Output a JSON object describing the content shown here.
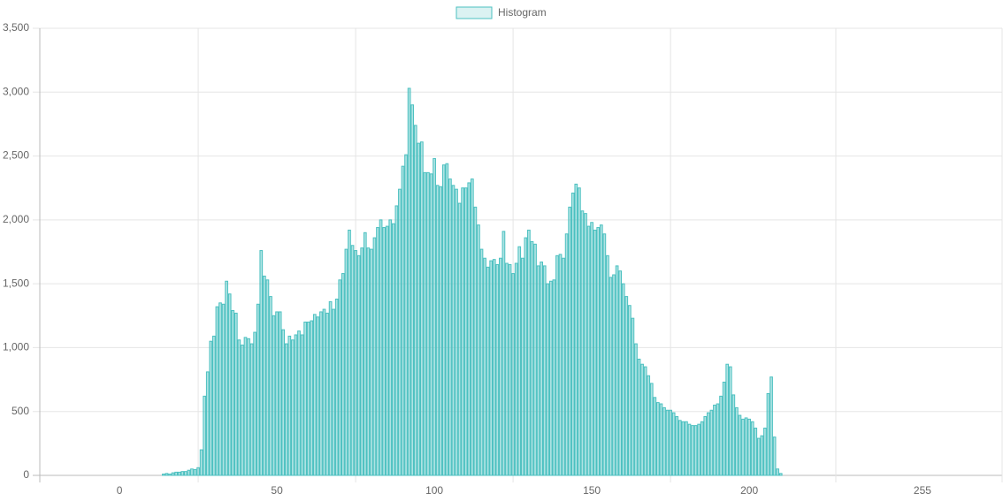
{
  "chart_data": {
    "type": "histogram",
    "x": [
      0,
      1,
      2,
      3,
      4,
      5,
      6,
      7,
      8,
      9,
      10,
      11,
      12,
      13,
      14,
      15,
      16,
      17,
      18,
      19,
      20,
      21,
      22,
      23,
      24,
      25,
      26,
      27,
      28,
      29,
      30,
      31,
      32,
      33,
      34,
      35,
      36,
      37,
      38,
      39,
      40,
      41,
      42,
      43,
      44,
      45,
      46,
      47,
      48,
      49,
      50,
      51,
      52,
      53,
      54,
      55,
      56,
      57,
      58,
      59,
      60,
      61,
      62,
      63,
      64,
      65,
      66,
      67,
      68,
      69,
      70,
      71,
      72,
      73,
      74,
      75,
      76,
      77,
      78,
      79,
      80,
      81,
      82,
      83,
      84,
      85,
      86,
      87,
      88,
      89,
      90,
      91,
      92,
      93,
      94,
      95,
      96,
      97,
      98,
      99,
      100,
      101,
      102,
      103,
      104,
      105,
      106,
      107,
      108,
      109,
      110,
      111,
      112,
      113,
      114,
      115,
      116,
      117,
      118,
      119,
      120,
      121,
      122,
      123,
      124,
      125,
      126,
      127,
      128,
      129,
      130,
      131,
      132,
      133,
      134,
      135,
      136,
      137,
      138,
      139,
      140,
      141,
      142,
      143,
      144,
      145,
      146,
      147,
      148,
      149,
      150,
      151,
      152,
      153,
      154,
      155,
      156,
      157,
      158,
      159,
      160,
      161,
      162,
      163,
      164,
      165,
      166,
      167,
      168,
      169,
      170,
      171,
      172,
      173,
      174,
      175,
      176,
      177,
      178,
      179,
      180,
      181,
      182,
      183,
      184,
      185,
      186,
      187,
      188,
      189,
      190,
      191,
      192,
      193,
      194,
      195,
      196,
      197,
      198,
      199,
      200,
      201,
      202,
      203,
      204,
      205,
      206,
      207,
      208,
      209,
      210,
      211,
      212,
      213,
      214,
      215,
      216,
      217,
      218,
      219,
      220,
      221,
      222,
      223,
      224,
      225,
      226,
      227,
      228,
      229,
      230,
      231,
      232,
      233,
      234,
      235,
      236,
      237,
      238,
      239,
      240,
      241,
      242,
      243,
      244,
      245,
      246,
      247,
      248,
      249,
      250,
      251,
      252,
      253,
      254,
      255
    ],
    "series": [
      {
        "name": "Histogram",
        "color": "#4bc0c0",
        "values": [
          0,
          0,
          0,
          0,
          0,
          0,
          0,
          0,
          0,
          0,
          0,
          0,
          0,
          0,
          10,
          15,
          10,
          20,
          25,
          25,
          30,
          30,
          40,
          50,
          45,
          60,
          200,
          620,
          810,
          1050,
          1090,
          1320,
          1350,
          1340,
          1520,
          1420,
          1290,
          1270,
          1060,
          1020,
          1080,
          1070,
          1030,
          1120,
          1340,
          1760,
          1560,
          1530,
          1400,
          1250,
          1280,
          1280,
          1140,
          1030,
          1090,
          1060,
          1100,
          1130,
          1100,
          1200,
          1200,
          1210,
          1260,
          1240,
          1280,
          1300,
          1270,
          1360,
          1300,
          1380,
          1530,
          1580,
          1770,
          1920,
          1800,
          1760,
          1720,
          1780,
          1900,
          1780,
          1770,
          1860,
          1940,
          2000,
          1940,
          1950,
          2000,
          1970,
          2110,
          2240,
          2420,
          2510,
          3030,
          2900,
          2740,
          2600,
          2610,
          2370,
          2370,
          2360,
          2480,
          2270,
          2260,
          2430,
          2440,
          2320,
          2270,
          2240,
          2130,
          2250,
          2250,
          2290,
          2320,
          2100,
          1960,
          1770,
          1700,
          1630,
          1680,
          1690,
          1650,
          1700,
          1910,
          1660,
          1650,
          1580,
          1660,
          1790,
          1700,
          1860,
          1920,
          1830,
          1810,
          1640,
          1670,
          1640,
          1500,
          1520,
          1530,
          1720,
          1730,
          1700,
          1890,
          2100,
          2210,
          2280,
          2250,
          2070,
          2050,
          1950,
          1980,
          1920,
          1940,
          1960,
          1890,
          1720,
          1550,
          1570,
          1640,
          1600,
          1500,
          1400,
          1330,
          1230,
          1030,
          910,
          870,
          850,
          780,
          720,
          610,
          570,
          560,
          530,
          510,
          510,
          490,
          460,
          430,
          420,
          420,
          400,
          390,
          390,
          400,
          420,
          460,
          490,
          510,
          550,
          560,
          620,
          730,
          870,
          850,
          630,
          530,
          470,
          440,
          450,
          440,
          420,
          370,
          290,
          310,
          370,
          640,
          770,
          300,
          50,
          15,
          0,
          0,
          0,
          0,
          0,
          0,
          0,
          0,
          0,
          0,
          0,
          0,
          0,
          0,
          0,
          0,
          0,
          0,
          0,
          0,
          0,
          0,
          0,
          0,
          0,
          0,
          0,
          0,
          0,
          0,
          0,
          0,
          0,
          0,
          0,
          0,
          0,
          0,
          0,
          0,
          0,
          0,
          0,
          0,
          0
        ]
      }
    ],
    "xlim": [
      -25.3,
      280.3
    ],
    "xticks": [
      0,
      50,
      100,
      150,
      200,
      255
    ],
    "ylim": [
      0,
      3500
    ],
    "yticks": [
      0,
      500,
      {
        "value": 1000,
        "label": "1,000"
      },
      {
        "value": 1500,
        "label": "1,500"
      },
      {
        "value": 2000,
        "label": "2,000"
      },
      {
        "value": 2500,
        "label": "2,500"
      },
      {
        "value": 3000,
        "label": "3,000"
      },
      {
        "value": 3500,
        "label": "3,500"
      }
    ],
    "grid": true,
    "legend": "top"
  }
}
